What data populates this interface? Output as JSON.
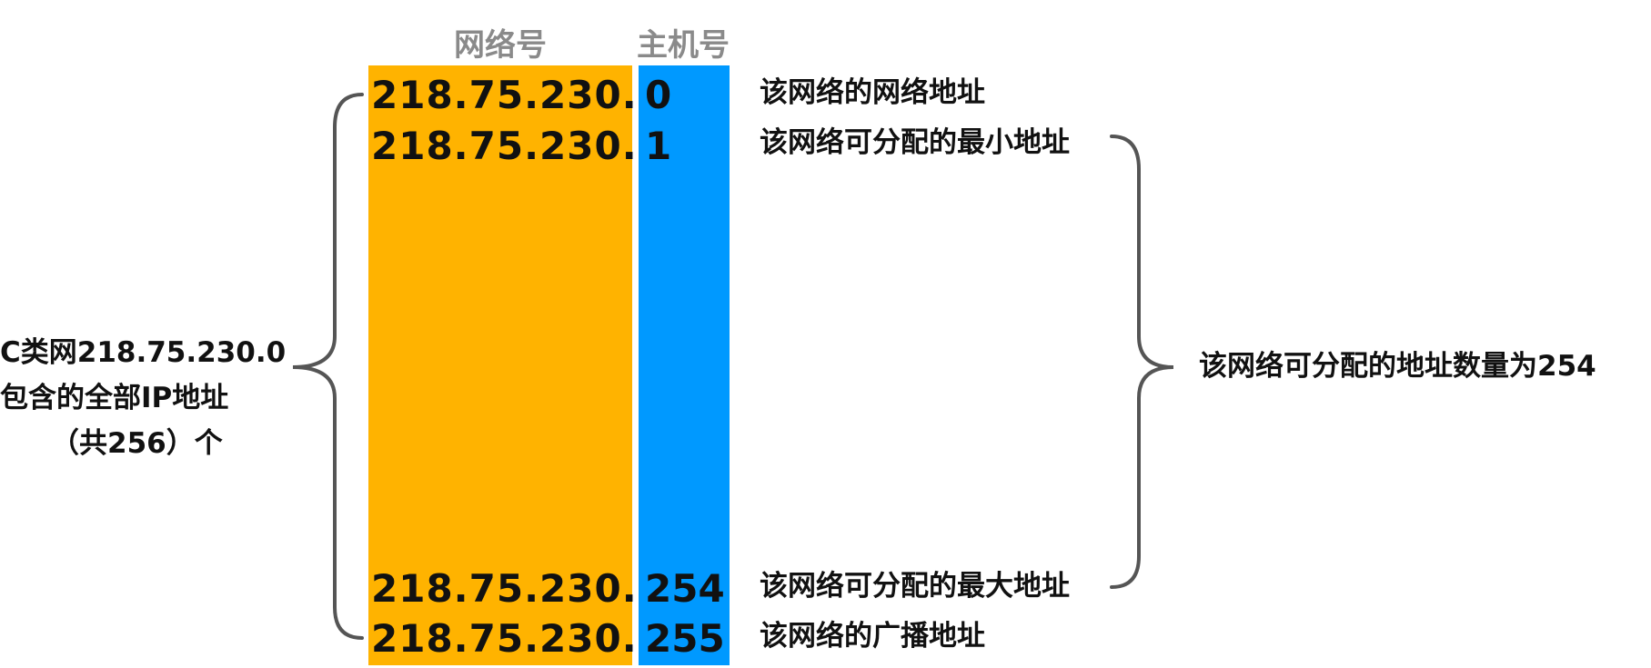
{
  "headers": {
    "network": "网络号",
    "host": "主机号"
  },
  "rows": [
    {
      "network": "218.75.230.",
      "host": "0",
      "desc": "该网络的网络地址"
    },
    {
      "network": "218.75.230.",
      "host": "1",
      "desc": "该网络可分配的最小地址"
    },
    {
      "network": "218.75.230.",
      "host": "254",
      "desc": "该网络可分配的最大地址"
    },
    {
      "network": "218.75.230.",
      "host": "255",
      "desc": "该网络的广播地址"
    }
  ],
  "left_label": {
    "line1": "C类网218.75.230.0",
    "line2": "包含的全部IP地址",
    "line3": "（共256）个"
  },
  "right_label": "该网络可分配的地址数量为254",
  "colors": {
    "network_column": "#FFB300",
    "host_column": "#0099FF",
    "header_text": "#8a8a8a",
    "brace": "#555555"
  }
}
